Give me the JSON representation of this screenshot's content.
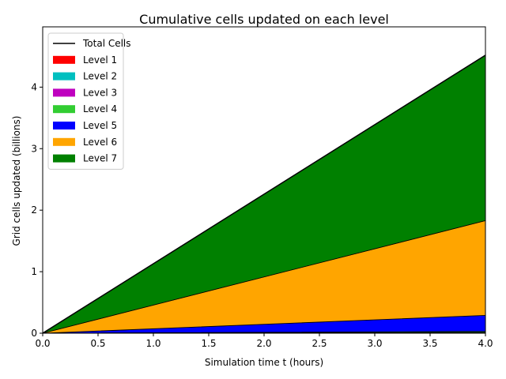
{
  "chart_data": {
    "type": "area",
    "title": "Cumulative cells updated on each level",
    "xlabel": "Simulation time t (hours)",
    "ylabel": "Grid cells updated (billions)",
    "xlim": [
      0,
      4.0
    ],
    "ylim": [
      0,
      4.98
    ],
    "x": [
      0,
      4.0
    ],
    "xticks": [
      "0.0",
      "0.5",
      "1.0",
      "1.5",
      "2.0",
      "2.5",
      "3.0",
      "3.5",
      "4.0"
    ],
    "yticks": [
      "0",
      "1",
      "2",
      "3",
      "4"
    ],
    "legend_position": "top-left",
    "stacked": true,
    "series": [
      {
        "name": "Level 1",
        "color": "#ff0000",
        "values": [
          0,
          0.002
        ]
      },
      {
        "name": "Level 2",
        "color": "#00bfbf",
        "values": [
          0,
          0.004
        ]
      },
      {
        "name": "Level 3",
        "color": "#bf00bf",
        "values": [
          0,
          0.008
        ]
      },
      {
        "name": "Level 4",
        "color": "#32cd32",
        "values": [
          0,
          0.016
        ]
      },
      {
        "name": "Level 5",
        "color": "#0000ff",
        "values": [
          0,
          0.26
        ]
      },
      {
        "name": "Level 6",
        "color": "#ffa500",
        "values": [
          0,
          1.54
        ]
      },
      {
        "name": "Level 7",
        "color": "#008000",
        "values": [
          0,
          2.69
        ]
      }
    ],
    "total": {
      "name": "Total Cells",
      "color": "#000000",
      "values": [
        0,
        4.52
      ]
    }
  }
}
